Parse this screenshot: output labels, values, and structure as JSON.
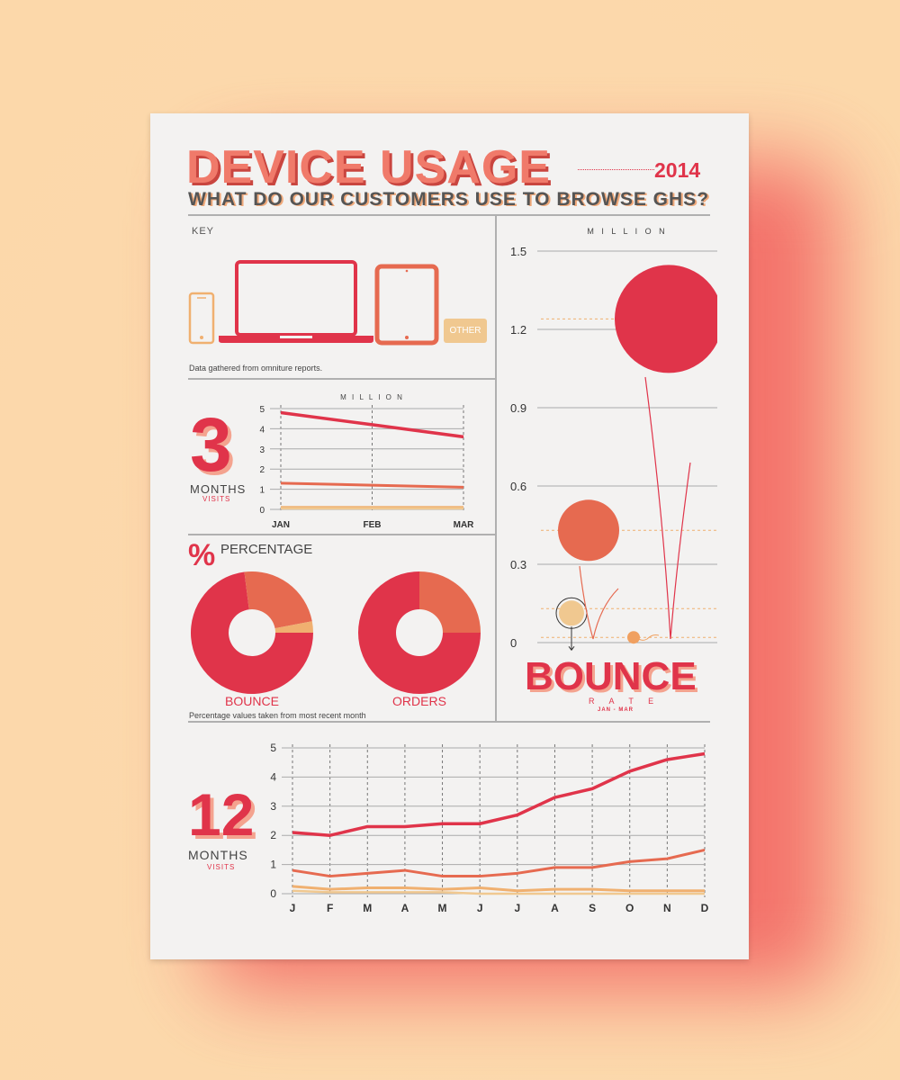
{
  "header": {
    "title": "DEVICE USAGE",
    "year": "2014",
    "subtitle": "WHAT DO OUR CUSTOMERS USE TO BROWSE GHS?"
  },
  "key": {
    "label": "KEY",
    "devices": [
      {
        "name": "phone-icon",
        "color": "#f0b070"
      },
      {
        "name": "laptop-icon",
        "color": "#e0344a"
      },
      {
        "name": "tablet-icon",
        "color": "#e66a50"
      },
      {
        "name": "other-icon",
        "label": "OTHER",
        "color": "#f0c890"
      }
    ],
    "note": "Data gathered from omniture reports."
  },
  "three_months": {
    "number": "3",
    "months_label": "MONTHS",
    "visits_label": "VISITS",
    "unit_label": "M I L L I O N"
  },
  "percentage": {
    "symbol": "%",
    "label": "PERCENTAGE",
    "note": "Percentage values taken from most recent month"
  },
  "bounce": {
    "title": "BOUNCE",
    "rate_label": "R A T E",
    "period_label": "JAN  -  MAR",
    "unit_label": "M I L L I O N"
  },
  "twelve_months": {
    "number": "12",
    "months_label": "MONTHS",
    "visits_label": "VISITS"
  },
  "colors": {
    "laptop": "#e0344a",
    "tablet": "#e66a50",
    "phone": "#f0b070",
    "other": "#f0c890"
  },
  "chart_data": [
    {
      "type": "line",
      "ylabel": "M I L L I O N",
      "categories": [
        "JAN",
        "FEB",
        "MAR"
      ],
      "yticks": [
        0,
        1,
        2,
        3,
        4,
        5
      ],
      "ylim": [
        0,
        5
      ],
      "series": [
        {
          "color": "#e0344a",
          "values": [
            4.8,
            4.2,
            3.6
          ]
        },
        {
          "color": "#e66a50",
          "values": [
            1.3,
            1.2,
            1.1
          ]
        },
        {
          "color": "#f0b070",
          "values": [
            0.1,
            0.1,
            0.1
          ]
        },
        {
          "color": "#f0c890",
          "values": [
            0.05,
            0.05,
            0.05
          ]
        }
      ]
    },
    {
      "type": "pie",
      "title": "BOUNCE",
      "slices": [
        {
          "color": "#e0344a",
          "value": 73
        },
        {
          "color": "#e66a50",
          "value": 24
        },
        {
          "color": "#f0b070",
          "value": 3
        }
      ]
    },
    {
      "type": "pie",
      "title": "ORDERS",
      "slices": [
        {
          "color": "#e0344a",
          "value": 75
        },
        {
          "color": "#e66a50",
          "value": 25
        }
      ]
    },
    {
      "type": "scatter",
      "ylabel": "M I L L I O N",
      "yticks": [
        "1.5",
        "1.2",
        "0.9",
        "0.6",
        "0.3",
        "0"
      ],
      "ylim": [
        0,
        1.5
      ],
      "points": [
        {
          "color": "#e0344a",
          "value": 1.24
        },
        {
          "color": "#e66a50",
          "value": 0.43
        },
        {
          "color": "#f0c890",
          "value": 0.13
        },
        {
          "color": "#f0a060",
          "value": 0.02
        }
      ]
    },
    {
      "type": "line",
      "categories": [
        "J",
        "F",
        "M",
        "A",
        "M",
        "J",
        "J",
        "A",
        "S",
        "O",
        "N",
        "D"
      ],
      "yticks": [
        0,
        1,
        2,
        3,
        4,
        5
      ],
      "ylim": [
        0,
        5
      ],
      "series": [
        {
          "color": "#e0344a",
          "values": [
            2.1,
            2.0,
            2.3,
            2.3,
            2.4,
            2.4,
            2.7,
            3.3,
            3.6,
            4.2,
            4.6,
            4.8
          ]
        },
        {
          "color": "#e66a50",
          "values": [
            0.8,
            0.6,
            0.7,
            0.8,
            0.6,
            0.6,
            0.7,
            0.9,
            0.9,
            1.1,
            1.2,
            1.5
          ]
        },
        {
          "color": "#f0b070",
          "values": [
            0.25,
            0.15,
            0.2,
            0.2,
            0.15,
            0.2,
            0.1,
            0.15,
            0.15,
            0.1,
            0.1,
            0.1
          ]
        },
        {
          "color": "#f0c890",
          "values": [
            0.1,
            0.05,
            0.05,
            0.05,
            0.05,
            0.0,
            0.0,
            0.0,
            0.0,
            0.0,
            0.0,
            0.0
          ]
        }
      ]
    }
  ]
}
